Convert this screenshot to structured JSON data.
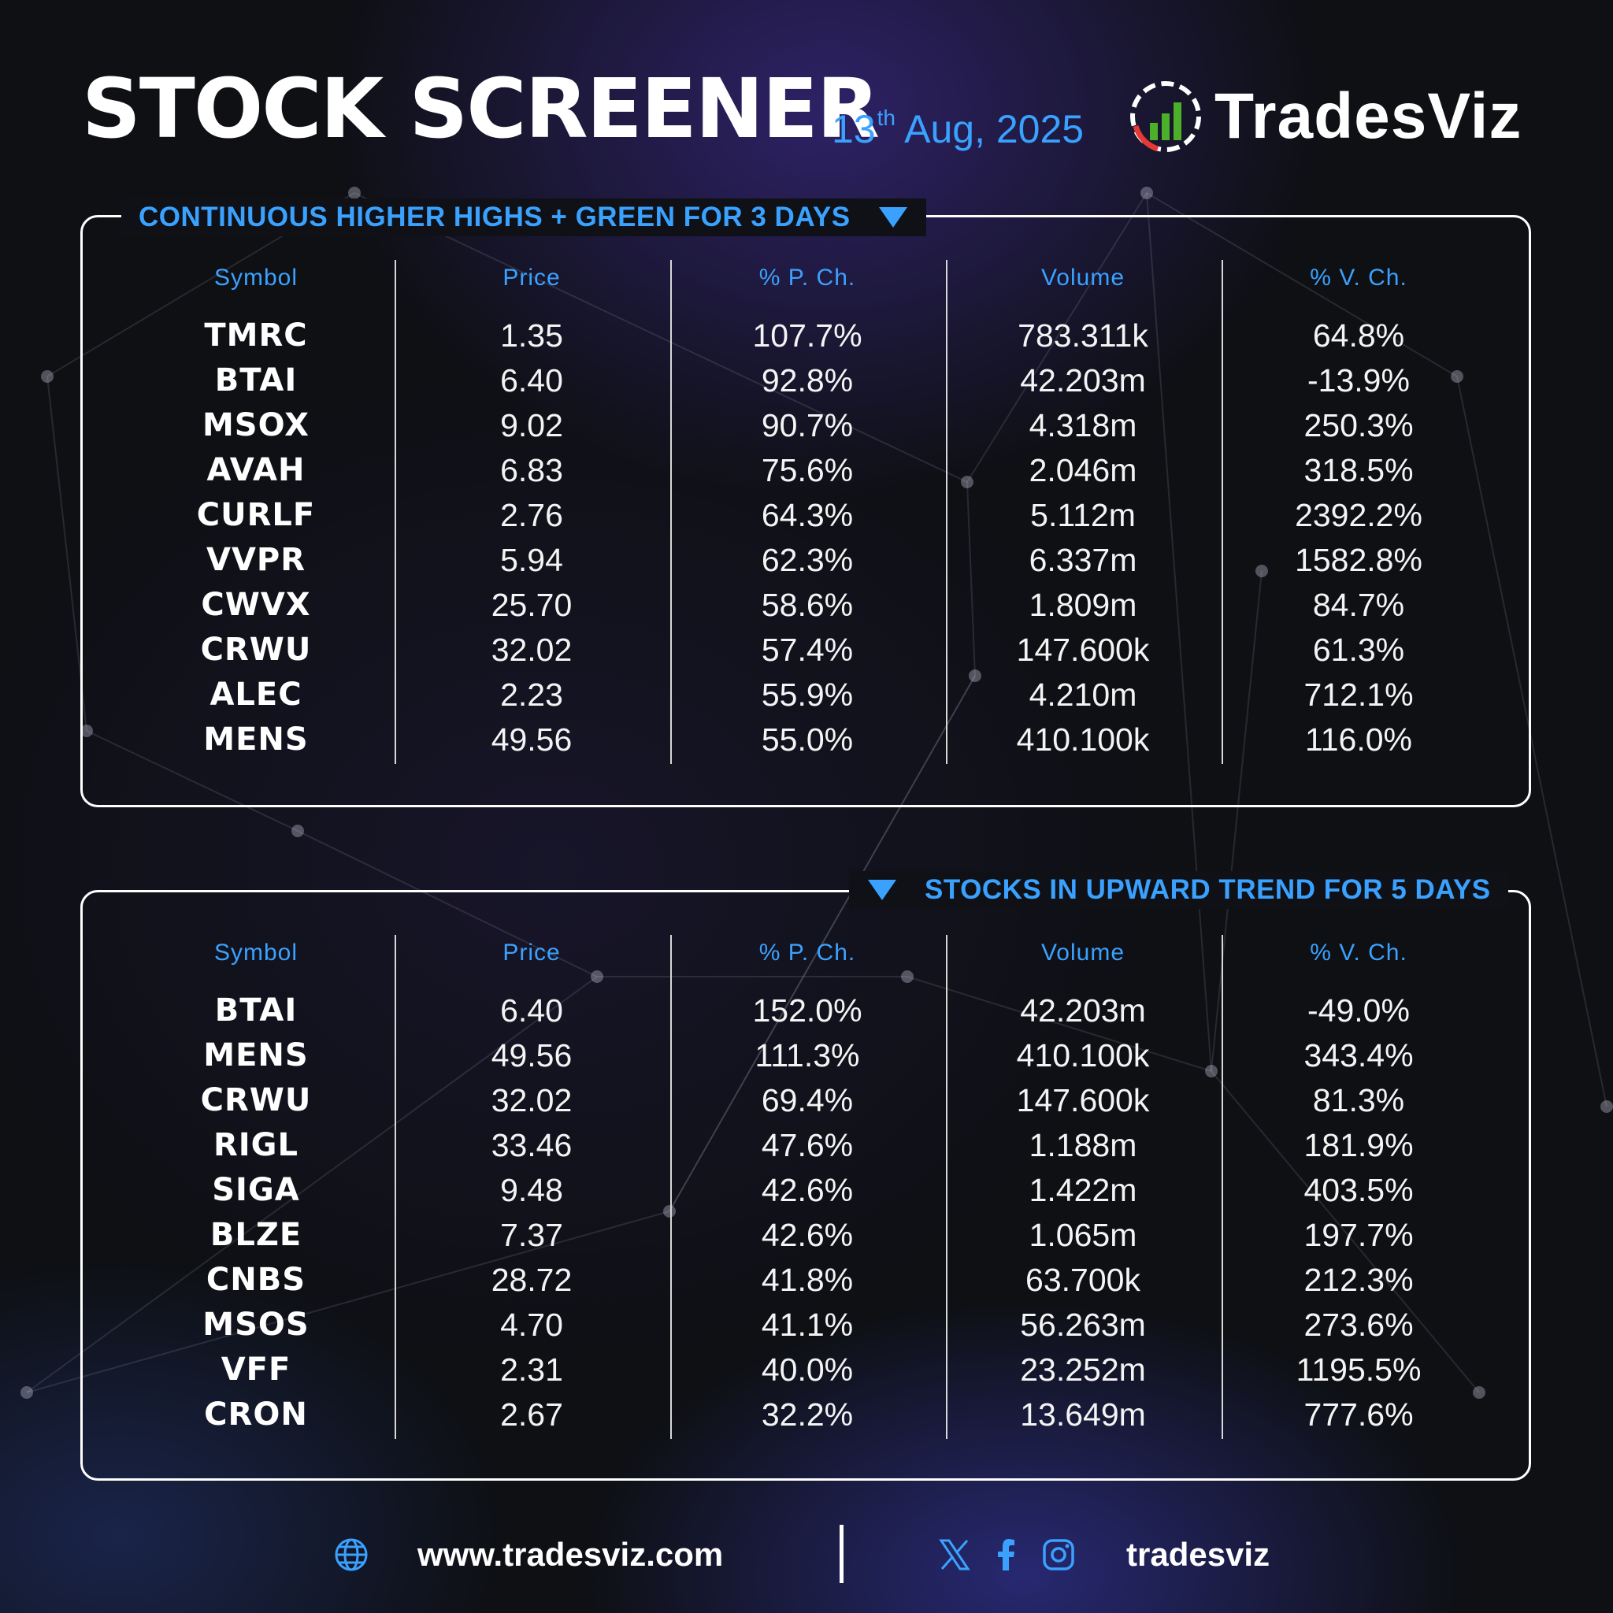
{
  "header": {
    "title": "STOCK SCREENER",
    "date_day": "13",
    "date_suffix": "th",
    "date_rest": "Aug, 2025",
    "brand_name": "TradesViz",
    "logo_icon": "tradesviz-logo-icon"
  },
  "columns": [
    "Symbol",
    "Price",
    "% P. Ch.",
    "Volume",
    "% V. Ch."
  ],
  "screens": [
    {
      "title": "CONTINUOUS HIGHER HIGHS + GREEN FOR 3 DAYS",
      "rows": [
        [
          "TMRC",
          "1.35",
          "107.7%",
          "783.311k",
          "64.8%"
        ],
        [
          "BTAI",
          "6.40",
          "92.8%",
          "42.203m",
          "-13.9%"
        ],
        [
          "MSOX",
          "9.02",
          "90.7%",
          "4.318m",
          "250.3%"
        ],
        [
          "AVAH",
          "6.83",
          "75.6%",
          "2.046m",
          "318.5%"
        ],
        [
          "CURLF",
          "2.76",
          "64.3%",
          "5.112m",
          "2392.2%"
        ],
        [
          "VVPR",
          "5.94",
          "62.3%",
          "6.337m",
          "1582.8%"
        ],
        [
          "CWVX",
          "25.70",
          "58.6%",
          "1.809m",
          "84.7%"
        ],
        [
          "CRWU",
          "32.02",
          "57.4%",
          "147.600k",
          "61.3%"
        ],
        [
          "ALEC",
          "2.23",
          "55.9%",
          "4.210m",
          "712.1%"
        ],
        [
          "MENS",
          "49.56",
          "55.0%",
          "410.100k",
          "116.0%"
        ]
      ]
    },
    {
      "title": "STOCKS IN UPWARD TREND FOR 5 DAYS",
      "rows": [
        [
          "BTAI",
          "6.40",
          "152.0%",
          "42.203m",
          "-49.0%"
        ],
        [
          "MENS",
          "49.56",
          "111.3%",
          "410.100k",
          "343.4%"
        ],
        [
          "CRWU",
          "32.02",
          "69.4%",
          "147.600k",
          "81.3%"
        ],
        [
          "RIGL",
          "33.46",
          "47.6%",
          "1.188m",
          "181.9%"
        ],
        [
          "SIGA",
          "9.48",
          "42.6%",
          "1.422m",
          "403.5%"
        ],
        [
          "BLZE",
          "7.37",
          "42.6%",
          "1.065m",
          "197.7%"
        ],
        [
          "CNBS",
          "28.72",
          "41.8%",
          "63.700k",
          "212.3%"
        ],
        [
          "MSOS",
          "4.70",
          "41.1%",
          "56.263m",
          "273.6%"
        ],
        [
          "VFF",
          "2.31",
          "40.0%",
          "23.252m",
          "1195.5%"
        ],
        [
          "CRON",
          "2.67",
          "32.2%",
          "13.649m",
          "777.6%"
        ]
      ]
    }
  ],
  "footer": {
    "website": "www.tradesviz.com",
    "handle": "tradesviz",
    "icons": [
      "globe-icon",
      "x-icon",
      "facebook-icon",
      "instagram-icon"
    ]
  },
  "colors": {
    "accent": "#3aa1ff",
    "text": "#ffffff",
    "background": "#0e1014",
    "logo_green": "#4caf2a",
    "logo_red": "#e53935"
  }
}
